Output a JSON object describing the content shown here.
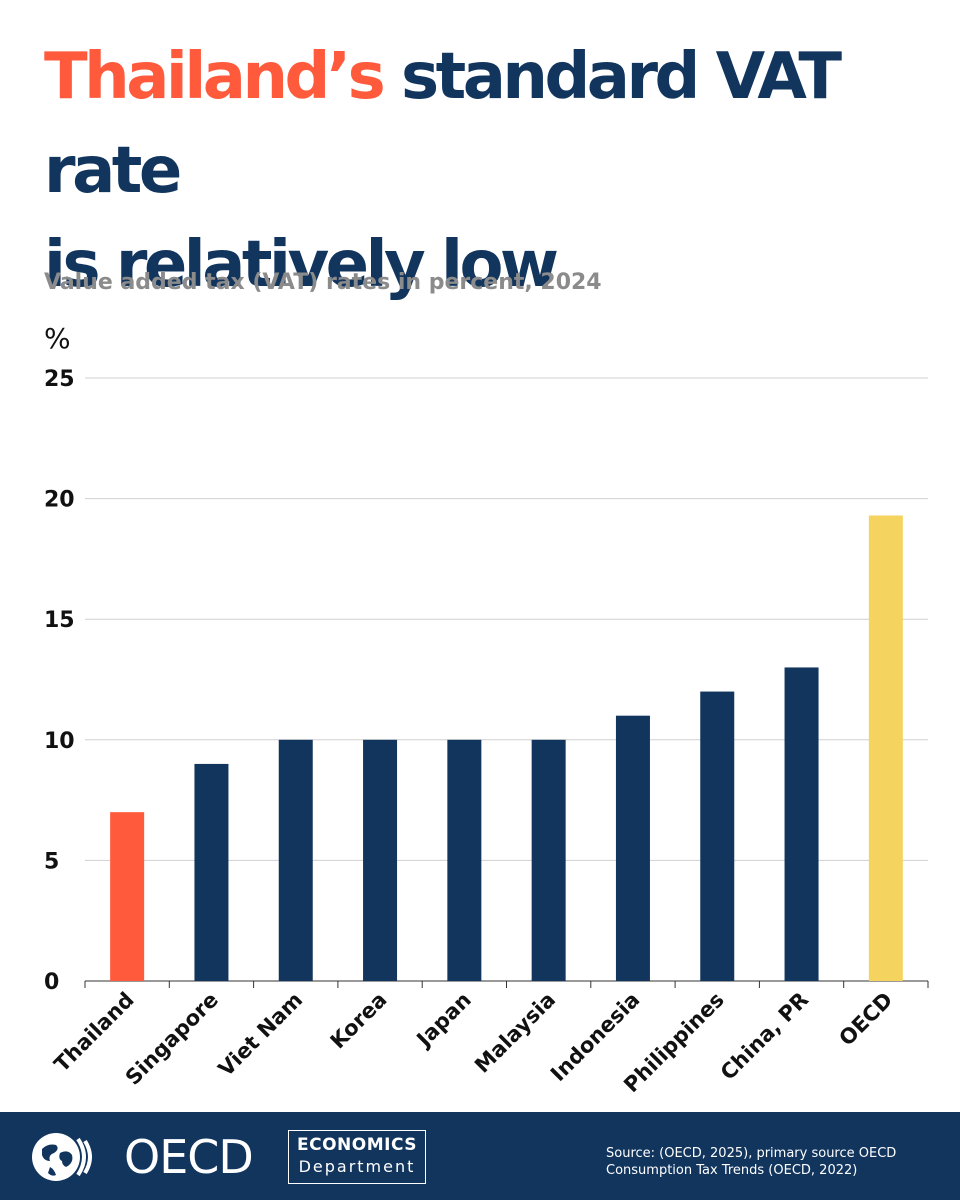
{
  "title": {
    "highlight": "Thailand’s",
    "rest_line1": " standard VAT rate",
    "line2": "is relatively low"
  },
  "subtitle": "Value added tax (VAT) rates in percent, 2024",
  "colors": {
    "highlight": "#ff5a3c",
    "navy": "#12355e",
    "oecd_bar": "#f4d35e",
    "grid": "#d0d0d0",
    "subtitle": "#8b8b8b"
  },
  "chart_data": {
    "type": "bar",
    "unit_label": "%",
    "categories": [
      "Thailand",
      "Singapore",
      "Viet Nam",
      "Korea",
      "Japan",
      "Malaysia",
      "Indonesia",
      "Philippines",
      "China, PR",
      "OECD"
    ],
    "values": [
      7,
      9,
      10,
      10,
      10,
      10,
      11,
      12,
      13,
      19.3
    ],
    "bar_colors": [
      "#ff5a3c",
      "#12355e",
      "#12355e",
      "#12355e",
      "#12355e",
      "#12355e",
      "#12355e",
      "#12355e",
      "#12355e",
      "#f4d35e"
    ],
    "ylim": [
      0,
      25
    ],
    "yticks": [
      0,
      5,
      10,
      15,
      20,
      25
    ],
    "grid": true
  },
  "footer": {
    "logo_icon": "globe-icon",
    "oecd_text": "OECD",
    "economics_top": "ECONOMICS",
    "economics_bottom": "Department",
    "source_line1": "Source: (OECD, 2025), primary source OECD",
    "source_line2": "Consumption Tax Trends (OECD, 2022)"
  }
}
